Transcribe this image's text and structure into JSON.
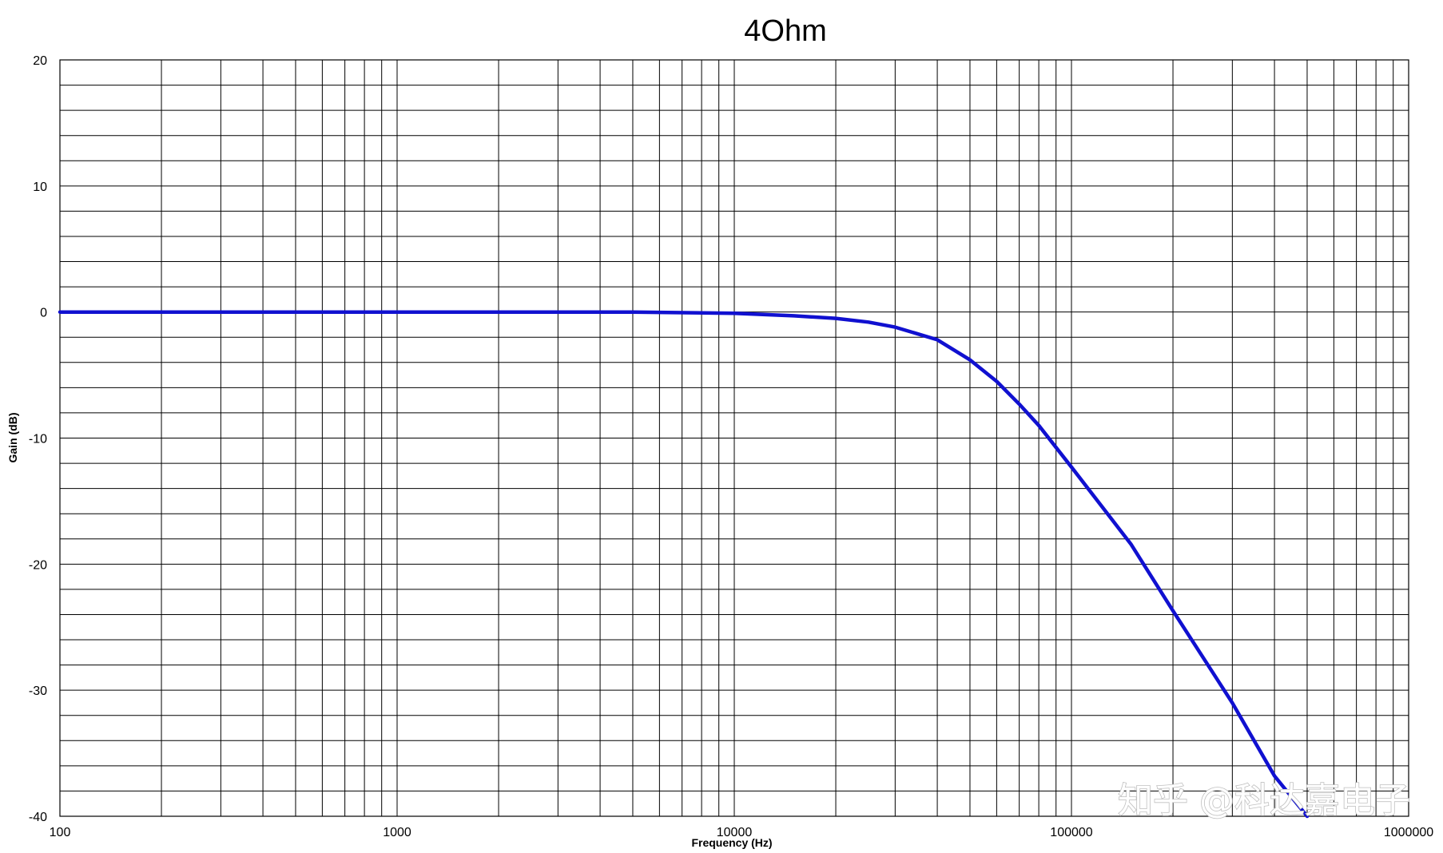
{
  "chart_data": {
    "type": "line",
    "title": "4Ohm",
    "xlabel": "Frequency (Hz)",
    "ylabel": "Gain (dB)",
    "xscale": "log",
    "xlim": [
      100,
      1000000
    ],
    "ylim": [
      -40,
      20
    ],
    "x_ticks": [
      "100",
      "1000",
      "10000",
      "100000",
      "1000000"
    ],
    "y_ticks": [
      "20",
      "10",
      "0",
      "-10",
      "-20",
      "-30",
      "-40"
    ],
    "grid": true,
    "legend": "none",
    "line_color": "#1010d0",
    "series": [
      {
        "x": [
          100,
          200,
          500,
          1000,
          2000,
          5000,
          10000,
          15000,
          20000,
          25000,
          30000,
          40000,
          50000,
          60000,
          70000,
          80000,
          100000,
          150000,
          200000,
          300000,
          400000,
          500000
        ],
        "y": [
          0,
          0,
          0,
          0,
          0,
          0,
          -0.1,
          -0.3,
          -0.5,
          -0.8,
          -1.2,
          -2.2,
          -3.8,
          -5.5,
          -7.3,
          -9.0,
          -12.3,
          -18.4,
          -23.7,
          -31.0,
          -36.8,
          -40.0
        ]
      }
    ]
  },
  "watermark": "知乎 @科达嘉电子"
}
